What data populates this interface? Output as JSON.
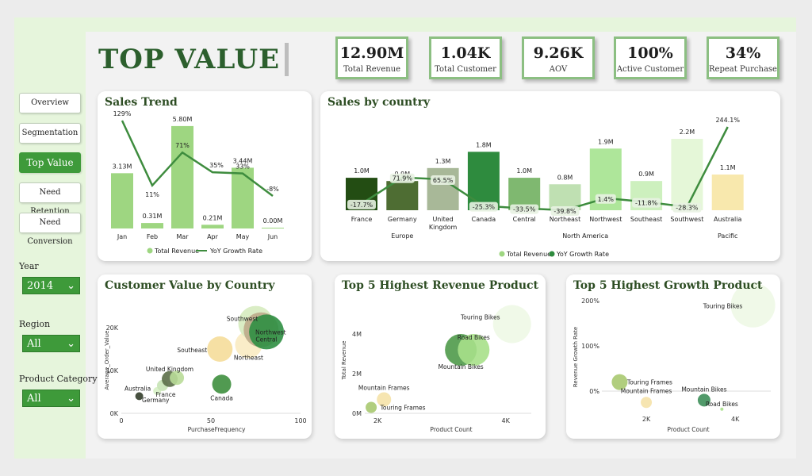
{
  "page": {
    "title": "TOP VALUE"
  },
  "kpis": [
    {
      "value": "12.90M",
      "label": "Total Revenue"
    },
    {
      "value": "1.04K",
      "label": "Total Customer"
    },
    {
      "value": "9.26K",
      "label": "AOV"
    },
    {
      "value": "100%",
      "label": "Active Customer"
    },
    {
      "value": "34%",
      "label": "Repeat Purchase"
    }
  ],
  "nav": [
    "Overview",
    "Segmentation",
    "Top Value",
    "Need Retention",
    "Need Conversion"
  ],
  "nav_active": "Top Value",
  "filters": [
    {
      "label": "Year",
      "value": "2014"
    },
    {
      "label": "Region",
      "value": "All"
    },
    {
      "label": "Product Category",
      "value": "All"
    }
  ],
  "colors": {
    "accent": "#3e9a3a",
    "kpi_border": "#8cbf82",
    "sidebar_bg": "#e6f5dc",
    "line": "#3e8c3e"
  },
  "cards": {
    "sales_trend": "Sales Trend",
    "sales_by_country": "Sales by country",
    "customer_value": "Customer Value by Country",
    "top5_revenue": "Top 5 Highest Revenue Product",
    "top5_growth": "Top 5 Highest Growth Product"
  },
  "chart_data": [
    {
      "id": "sales_trend",
      "type": "bar+line",
      "categories": [
        "Jan",
        "Feb",
        "Mar",
        "Apr",
        "May",
        "Jun"
      ],
      "series": [
        {
          "name": "Total Revenue",
          "values": [
            3.13,
            0.31,
            5.8,
            0.21,
            3.44,
            0.0
          ],
          "labels": [
            "3.13M",
            "0.31M",
            "5.80M",
            "0.21M",
            "3.44M",
            "0.00M"
          ]
        },
        {
          "name": "YoY Growth Rate",
          "values": [
            129,
            11,
            71,
            35,
            33,
            -8
          ],
          "labels": [
            "129%",
            "11%",
            "71%",
            "35%",
            "33%",
            "-8%"
          ]
        }
      ],
      "ylim": [
        0,
        6.2
      ]
    },
    {
      "id": "sales_by_country",
      "type": "bar+line",
      "categories": [
        "France",
        "Germany",
        "United Kingdom",
        "Canada",
        "Central",
        "Northeast",
        "Northwest",
        "Southeast",
        "Southwest",
        "Australia"
      ],
      "groups": [
        {
          "name": "Europe",
          "span": [
            0,
            2
          ]
        },
        {
          "name": "North America",
          "span": [
            3,
            8
          ]
        },
        {
          "name": "Pacific",
          "span": [
            9,
            9
          ]
        }
      ],
      "series": [
        {
          "name": "Total Revenue",
          "values": [
            1.0,
            0.9,
            1.3,
            1.8,
            1.0,
            0.8,
            1.9,
            0.9,
            2.2,
            1.1
          ],
          "labels": [
            "1.0M",
            "0.9M",
            "1.3M",
            "1.8M",
            "1.0M",
            "0.8M",
            "1.9M",
            "0.9M",
            "2.2M",
            "1.1M"
          ]
        },
        {
          "name": "YoY Growth Rate",
          "values": [
            -17.7,
            71.9,
            65.5,
            -25.3,
            -33.5,
            -39.8,
            1.4,
            -11.8,
            -28.3,
            244.1
          ],
          "labels": [
            "-17.7%",
            "71.9%",
            "65.5%",
            "-25.3%",
            "-33.5%",
            "-39.8%",
            "1.4%",
            "-11.8%",
            "-28.3%",
            "244.1%"
          ]
        }
      ],
      "bar_colors": [
        "#234d13",
        "#4e6d33",
        "#a8b898",
        "#2e8b3e",
        "#7fb870",
        "#bfe0b2",
        "#aee69a",
        "#cdf0be",
        "#e5f7d8",
        "#f8e8ad"
      ]
    },
    {
      "id": "customer_value",
      "type": "scatter",
      "xlabel": "PurchaseFrequency",
      "ylabel": "Average_Order_Value",
      "xticks": [
        "0",
        "50",
        "100"
      ],
      "yticks": [
        "0K",
        "10K",
        "20K"
      ],
      "xlim": [
        0,
        100
      ],
      "ylim": [
        0,
        25000
      ],
      "points": [
        {
          "label": "Australia",
          "x": 10,
          "y": 4000,
          "r": 5,
          "color": "#333d2a"
        },
        {
          "label": "Germany",
          "x": 20,
          "y": 5200,
          "r": 5,
          "color": "#d6efc4"
        },
        {
          "label": "France",
          "x": 23,
          "y": 6500,
          "r": 7,
          "color": "#c6e3b5"
        },
        {
          "label": "United Kingdom",
          "x": 27,
          "y": 8000,
          "r": 10,
          "color": "#5b6e48"
        },
        {
          "label": "",
          "x": 31,
          "y": 8300,
          "r": 9,
          "color": "#b9db98"
        },
        {
          "label": "Canada",
          "x": 56,
          "y": 6800,
          "r": 12,
          "color": "#3e8f3e"
        },
        {
          "label": "Southeast",
          "x": 55,
          "y": 15000,
          "r": 16,
          "color": "#f5dd9a"
        },
        {
          "label": "Northeast",
          "x": 71,
          "y": 16000,
          "r": 17,
          "color": "#f9ebc2"
        },
        {
          "label": "Southwest",
          "x": 75,
          "y": 21000,
          "r": 22,
          "color": "#d6ebbf"
        },
        {
          "label": "Northwest",
          "x": 78,
          "y": 19500,
          "r": 22,
          "color": "#bcaa8a"
        },
        {
          "label": "Central",
          "x": 81,
          "y": 19000,
          "r": 22,
          "color": "#2f8f43"
        }
      ]
    },
    {
      "id": "top5_revenue",
      "type": "scatter",
      "xlabel": "Product Count",
      "ylabel": "Total Revenue",
      "xticks": [
        "2K",
        "4K"
      ],
      "yticks": [
        "0M",
        "2M",
        "4M"
      ],
      "points": [
        {
          "label": "Touring Frames",
          "x": 1900,
          "y": 300000,
          "r": 7,
          "color": "#a9c970"
        },
        {
          "label": "Mountain Frames",
          "x": 2100,
          "y": 700000,
          "r": 9,
          "color": "#f5e2a8"
        },
        {
          "label": "Mountain Bikes",
          "x": 3300,
          "y": 3200000,
          "r": 20,
          "color": "#4f9a4a"
        },
        {
          "label": "Road Bikes",
          "x": 3500,
          "y": 3200000,
          "r": 20,
          "color": "#a7e089"
        },
        {
          "label": "Touring Bikes",
          "x": 4100,
          "y": 4500000,
          "r": 24,
          "color": "#eef8e6"
        }
      ]
    },
    {
      "id": "top5_growth",
      "type": "scatter",
      "xlabel": "Product Count",
      "ylabel": "Revenue Growth Rate",
      "xticks": [
        "2K",
        "4K"
      ],
      "yticks": [
        "0%",
        "100%",
        "200%"
      ],
      "points": [
        {
          "label": "Touring Frames",
          "x": 1400,
          "y": 20,
          "r": 10,
          "color": "#a9c970"
        },
        {
          "label": "Mountain Frames",
          "x": 2000,
          "y": -25,
          "r": 7,
          "color": "#f5e2a8"
        },
        {
          "label": "Mountain Bikes",
          "x": 3300,
          "y": -20,
          "r": 8,
          "color": "#3e8f5a"
        },
        {
          "label": "Road Bikes",
          "x": 3700,
          "y": -40,
          "r": 2,
          "color": "#a7e089"
        },
        {
          "label": "Touring Bikes",
          "x": 4400,
          "y": 190,
          "r": 28,
          "color": "#eef8e6"
        }
      ]
    }
  ]
}
